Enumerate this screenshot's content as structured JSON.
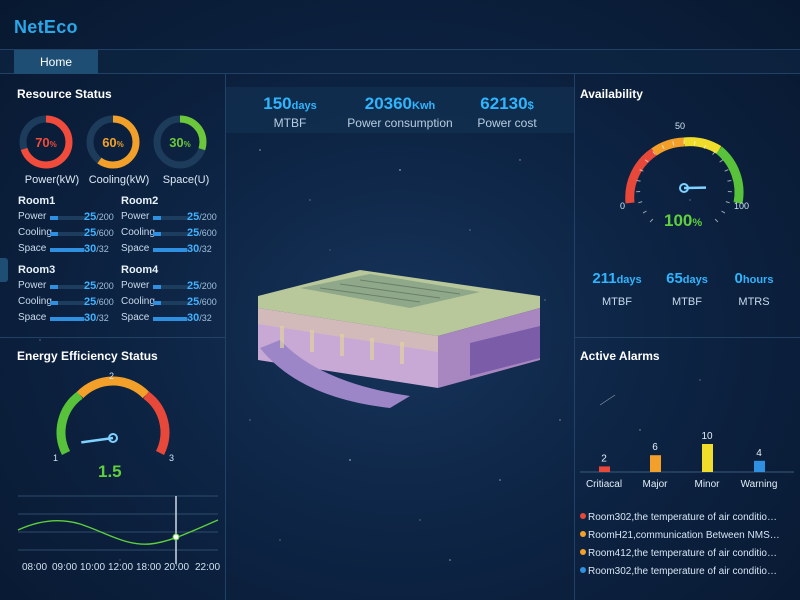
{
  "app": {
    "logo": "NetEco"
  },
  "nav": {
    "home_label": "Home"
  },
  "resource_status": {
    "title": "Resource Status",
    "gauges": [
      {
        "percent": 70,
        "value_text": "70",
        "unit": "%",
        "label": "Power(kW)",
        "color": "#f04b3b"
      },
      {
        "percent": 60,
        "value_text": "60",
        "unit": "%",
        "label": "Cooling(kW)",
        "color": "#f2a02a"
      },
      {
        "percent": 30,
        "value_text": "30",
        "unit": "%",
        "label": "Space(U)",
        "color": "#6cc83a"
      }
    ],
    "rooms": [
      {
        "name": "Room1",
        "rows": [
          {
            "label": "Power",
            "value": "25",
            "max": "/200",
            "fraction": 0.125
          },
          {
            "label": "Cooling",
            "value": "25",
            "max": "/600",
            "fraction": 0.042
          },
          {
            "label": "Space",
            "value": "30",
            "max": "/32",
            "fraction": 0.94
          }
        ]
      },
      {
        "name": "Room2",
        "rows": [
          {
            "label": "Power",
            "value": "25",
            "max": "/200",
            "fraction": 0.125
          },
          {
            "label": "Cooling",
            "value": "25",
            "max": "/600",
            "fraction": 0.042
          },
          {
            "label": "Space",
            "value": "30",
            "max": "/32",
            "fraction": 0.94
          }
        ]
      },
      {
        "name": "Room3",
        "rows": [
          {
            "label": "Power",
            "value": "25",
            "max": "/200",
            "fraction": 0.125
          },
          {
            "label": "Cooling",
            "value": "25",
            "max": "/600",
            "fraction": 0.042
          },
          {
            "label": "Space",
            "value": "30",
            "max": "/32",
            "fraction": 0.94
          }
        ]
      },
      {
        "name": "Room4",
        "rows": [
          {
            "label": "Power",
            "value": "25",
            "max": "/200",
            "fraction": 0.125
          },
          {
            "label": "Cooling",
            "value": "25",
            "max": "/600",
            "fraction": 0.042
          },
          {
            "label": "Space",
            "value": "30",
            "max": "/32",
            "fraction": 0.94
          }
        ]
      }
    ]
  },
  "energy_efficiency": {
    "title": "Energy Efficiency Status",
    "gauge": {
      "min_label": "1",
      "mid_label": "2",
      "max_label": "3",
      "min": 1,
      "max": 3,
      "value": 1.5,
      "value_text": "1.5"
    },
    "trend": {
      "times": [
        "08:00",
        "09:00",
        "10:00",
        "12:00",
        "18:00",
        "20:00",
        "22:00"
      ]
    }
  },
  "summary": [
    {
      "value": "150",
      "unit": "days",
      "caption": "MTBF"
    },
    {
      "value": "20360",
      "unit": "Kwh",
      "caption": "Power consumption"
    },
    {
      "value": "62130",
      "unit": "$",
      "caption": "Power cost"
    }
  ],
  "availability": {
    "title": "Availability",
    "gauge": {
      "min_label": "0",
      "mid_label": "50",
      "max_label": "100",
      "min": 0,
      "max": 100,
      "value": 100,
      "value_text": "100",
      "unit": "%"
    },
    "metrics": [
      {
        "value": "211",
        "unit": "days",
        "caption": "MTBF"
      },
      {
        "value": "65",
        "unit": "days",
        "caption": "MTBF"
      },
      {
        "value": "0",
        "unit": "hours",
        "caption": "MTRS"
      }
    ]
  },
  "active_alarms": {
    "title": "Active Alarms",
    "chart_data": {
      "type": "bar",
      "categories": [
        "Critiacal",
        "Major",
        "Minor",
        "Warning"
      ],
      "values": [
        2,
        6,
        10,
        4
      ],
      "colors": [
        "#e8483a",
        "#f2a02a",
        "#f0dc2a",
        "#2f8fe0"
      ],
      "data_labels": [
        "2",
        "6",
        "10",
        "4"
      ],
      "ylim": [
        0,
        10
      ]
    },
    "items": [
      {
        "text": "Room302,the temperature of air condition...",
        "color": "#e8483a"
      },
      {
        "text": "RoomH21,communication Between NMS A...",
        "color": "#f2a02a"
      },
      {
        "text": "Room412,the temperature of air condition...",
        "color": "#f2a02a"
      },
      {
        "text": "Room302,the temperature of air condition...",
        "color": "#2f8fe0"
      }
    ]
  }
}
